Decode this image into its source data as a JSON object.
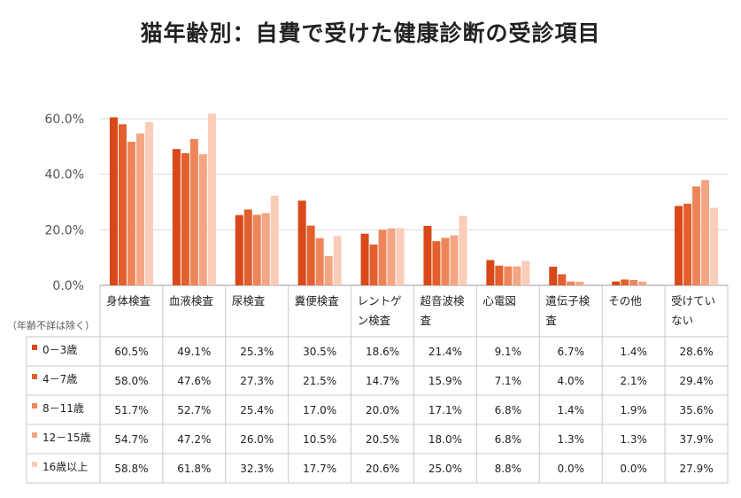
{
  "chart_data": {
    "type": "bar",
    "title": "猫年齢別：自費で受けた健康診断の受診項目",
    "note": "（年齢不詳は除く）",
    "ylim": [
      0,
      60
    ],
    "yticks": [
      "0.0%",
      "20.0%",
      "40.0%",
      "60.0%"
    ],
    "categories": [
      [
        "身体検査"
      ],
      [
        "血液検査"
      ],
      [
        "尿検査"
      ],
      [
        "糞便検査"
      ],
      [
        "レントゲ",
        "ン検査"
      ],
      [
        "超音波検",
        "査"
      ],
      [
        "心電図"
      ],
      [
        "遺伝子検",
        "査"
      ],
      [
        "その他"
      ],
      [
        "受けてい",
        "ない"
      ]
    ],
    "series": [
      {
        "name": "0－3歳",
        "color": "#d9481a",
        "values": [
          60.5,
          49.1,
          25.3,
          30.5,
          18.6,
          21.4,
          9.1,
          6.7,
          1.4,
          28.6
        ],
        "labels": [
          "60.5%",
          "49.1%",
          "25.3%",
          "30.5%",
          "18.6%",
          "21.4%",
          "9.1%",
          "6.7%",
          "1.4%",
          "28.6%"
        ]
      },
      {
        "name": "4－7歳",
        "color": "#e35f2d",
        "values": [
          58.0,
          47.6,
          27.3,
          21.5,
          14.7,
          15.9,
          7.1,
          4.0,
          2.1,
          29.4
        ],
        "labels": [
          "58.0%",
          "47.6%",
          "27.3%",
          "21.5%",
          "14.7%",
          "15.9%",
          "7.1%",
          "4.0%",
          "2.1%",
          "29.4%"
        ]
      },
      {
        "name": "8－11歳",
        "color": "#ee855a",
        "values": [
          51.7,
          52.7,
          25.4,
          17.0,
          20.0,
          17.1,
          6.8,
          1.4,
          1.9,
          35.6
        ],
        "labels": [
          "51.7%",
          "52.7%",
          "25.4%",
          "17.0%",
          "20.0%",
          "17.1%",
          "6.8%",
          "1.4%",
          "1.9%",
          "35.6%"
        ]
      },
      {
        "name": "12－15歳",
        "color": "#f4a583",
        "values": [
          54.7,
          47.2,
          26.0,
          10.5,
          20.5,
          18.0,
          6.8,
          1.3,
          1.3,
          37.9
        ],
        "labels": [
          "54.7%",
          "47.2%",
          "26.0%",
          "10.5%",
          "20.5%",
          "18.0%",
          "6.8%",
          "1.3%",
          "1.3%",
          "37.9%"
        ]
      },
      {
        "name": "16歳以上",
        "color": "#f9cdb8",
        "values": [
          58.8,
          61.8,
          32.3,
          17.7,
          20.6,
          25.0,
          8.8,
          0.0,
          0.0,
          27.9
        ],
        "labels": [
          "58.8%",
          "61.8%",
          "32.3%",
          "17.7%",
          "20.6%",
          "25.0%",
          "8.8%",
          "0.0%",
          "0.0%",
          "27.9%"
        ]
      }
    ]
  }
}
